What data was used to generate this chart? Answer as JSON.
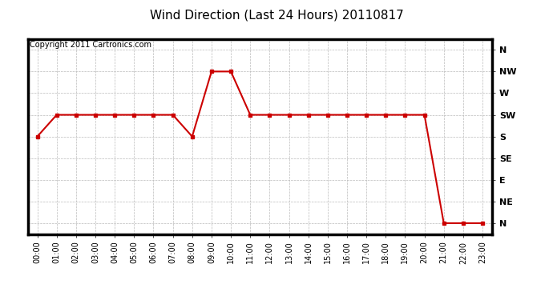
{
  "title": "Wind Direction (Last 24 Hours) 20110817",
  "copyright": "Copyright 2011 Cartronics.com",
  "x_labels": [
    "00:00",
    "01:00",
    "02:00",
    "03:00",
    "04:00",
    "05:00",
    "06:00",
    "07:00",
    "08:00",
    "09:00",
    "10:00",
    "11:00",
    "12:00",
    "13:00",
    "14:00",
    "15:00",
    "16:00",
    "17:00",
    "18:00",
    "19:00",
    "20:00",
    "21:00",
    "22:00",
    "23:00"
  ],
  "y_ticks": [
    0,
    1,
    2,
    3,
    4,
    5,
    6,
    7,
    8
  ],
  "y_labels": [
    "N",
    "NE",
    "E",
    "SE",
    "S",
    "SW",
    "W",
    "NW",
    "N"
  ],
  "data": [
    4,
    5,
    5,
    5,
    5,
    5,
    5,
    5,
    4,
    7,
    7,
    5,
    5,
    5,
    5,
    5,
    5,
    5,
    5,
    5,
    5,
    0,
    0,
    0
  ],
  "line_color": "#cc0000",
  "marker": "s",
  "marker_size": 3,
  "bg_color": "#ffffff",
  "grid_color": "#bbbbbb",
  "title_fontsize": 11,
  "copyright_fontsize": 7,
  "axis_label_fontsize": 8,
  "tick_fontsize": 7,
  "border_color": "#000000",
  "border_width": 2.5
}
